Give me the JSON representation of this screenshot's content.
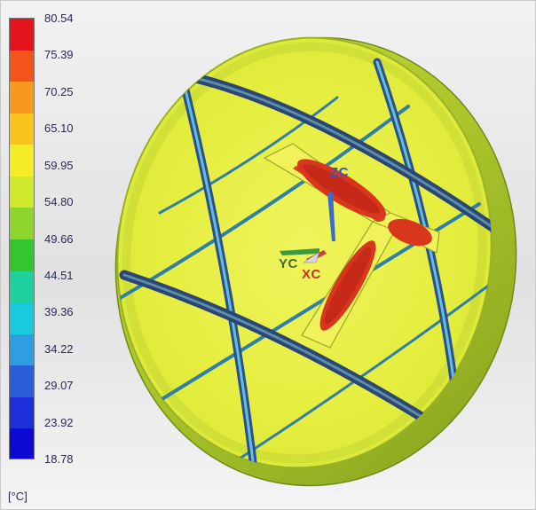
{
  "legend": {
    "unit": "[°C]",
    "ticks": [
      "80.54",
      "75.39",
      "70.25",
      "65.10",
      "59.95",
      "54.80",
      "49.66",
      "44.51",
      "39.36",
      "34.22",
      "29.07",
      "23.92",
      "18.78"
    ],
    "colors": [
      "#e3141d",
      "#f2541a",
      "#f7991c",
      "#f8c51f",
      "#f5ec28",
      "#cfe82c",
      "#8ed62e",
      "#34c52f",
      "#1fcf9c",
      "#19c9de",
      "#2f9de2",
      "#2a5ed8",
      "#1c2fd8",
      "#0d0ad3"
    ]
  },
  "axes": {
    "z": "ZC",
    "y": "YC",
    "x": "XC"
  },
  "palette": {
    "face": "#e5ed3c",
    "face_light": "#eef35a",
    "rim": "#b7cf2f",
    "rim_dark": "#8faa1f",
    "rib": "#3a5a8a",
    "hot": "#d2311c",
    "hot_mid": "#f0662a"
  }
}
